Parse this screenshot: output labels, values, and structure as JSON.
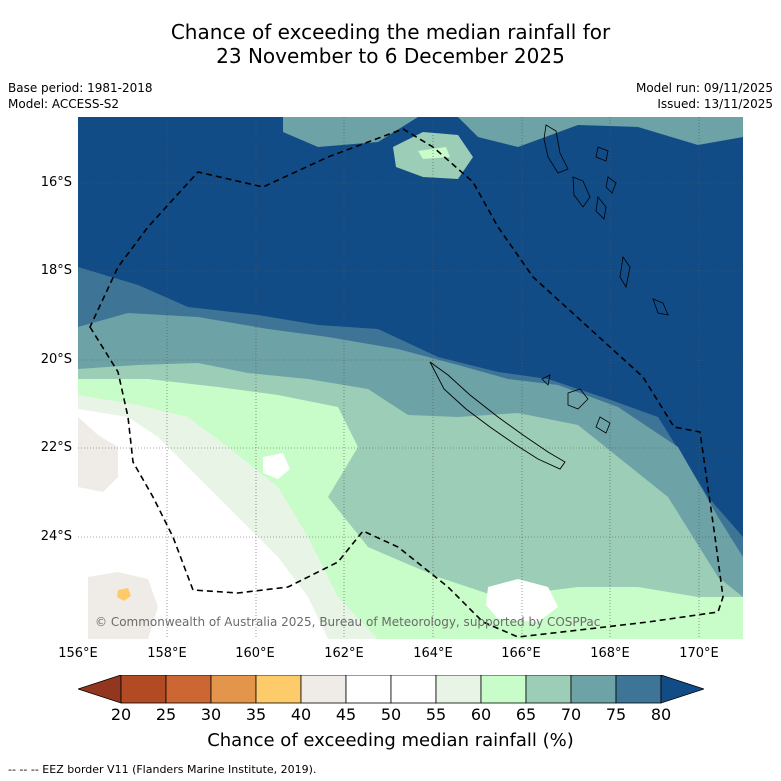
{
  "header": {
    "title_line1": "Chance of exceeding the median rainfall for",
    "title_line2": "23 November to 6 December 2025",
    "base_period": "Base period: 1981-2018",
    "model": "Model: ACCESS-S2",
    "model_run": "Model run: 09/11/2025",
    "issued": "Issued: 13/11/2025"
  },
  "map": {
    "lat_labels": [
      "16°S",
      "18°S",
      "20°S",
      "22°S",
      "24°S"
    ],
    "lon_labels": [
      "156°E",
      "158°E",
      "160°E",
      "162°E",
      "164°E",
      "166°E",
      "168°E",
      "170°E"
    ],
    "copyright": "© Commonwealth of Australia 2025, Bureau of Meteorology, supported by COSPPac"
  },
  "colorbar": {
    "ticks": [
      "20",
      "25",
      "30",
      "35",
      "40",
      "45",
      "50",
      "55",
      "60",
      "65",
      "70",
      "75",
      "80"
    ],
    "colors": {
      "under": "#93361f",
      "c20_25": "#b24a24",
      "c25_30": "#cc6632",
      "c30_35": "#e3954b",
      "c35_40": "#fecb6b",
      "c40_45": "#efebe6",
      "c45_50": "#ffffff",
      "c50_55": "#ffffff",
      "c55_60": "#e8f5e6",
      "c60_65": "#c8fcc8",
      "c65_70": "#9ccdb6",
      "c70_75": "#6da3a6",
      "c75_80": "#3e7596",
      "over": "#124c87"
    },
    "label": "Chance of exceeding median rainfall (%)"
  },
  "footer": {
    "legend": "--  --  -- EEZ border V11 (Flanders Marine Institute, 2019)."
  }
}
